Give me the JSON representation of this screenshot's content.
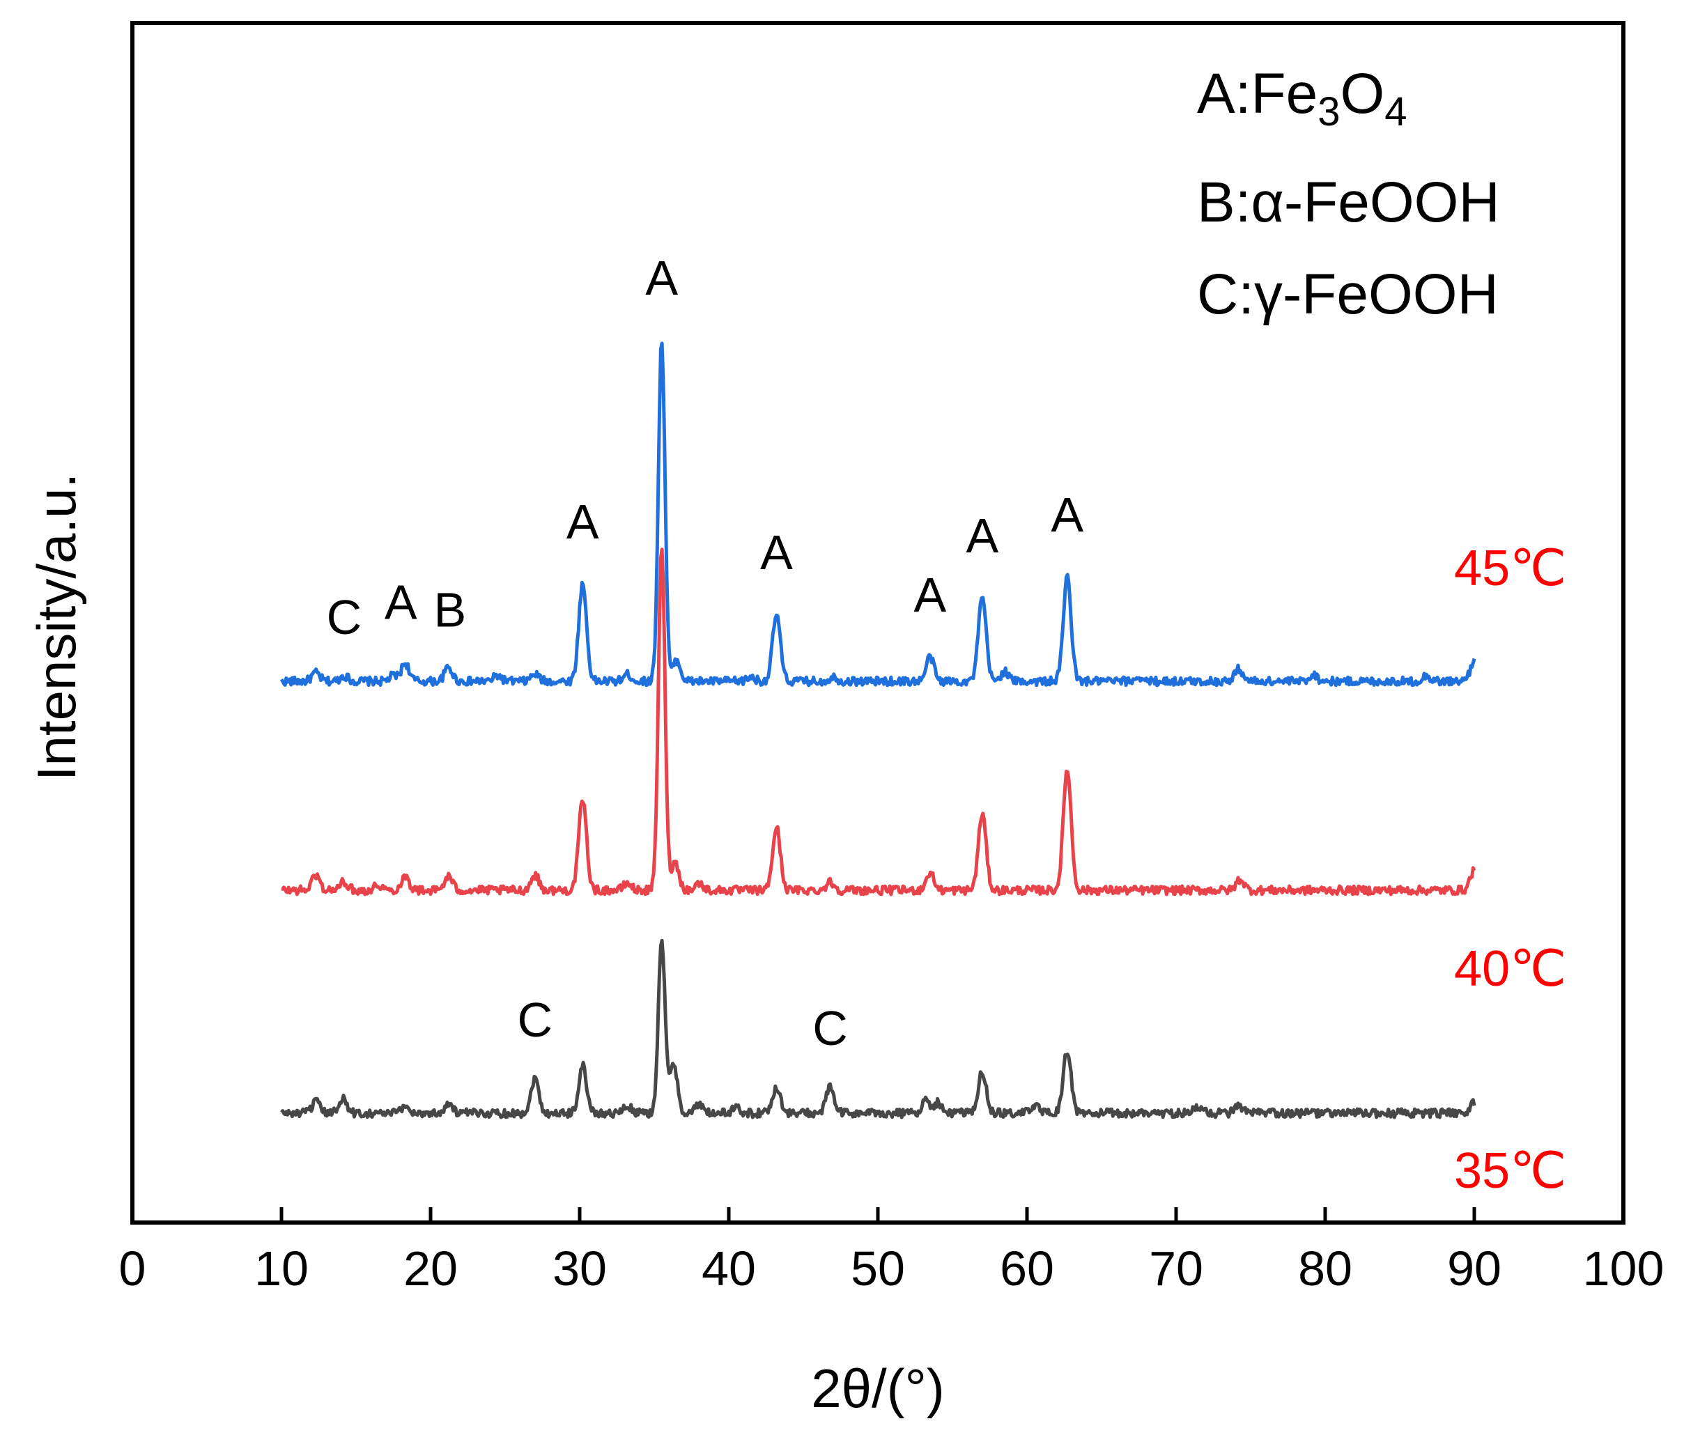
{
  "chart_data": {
    "type": "line",
    "title": "",
    "xlabel": "2θ/(°)",
    "ylabel": "Intensity/a.u.",
    "xlim": [
      0,
      100
    ],
    "xticks": [
      0,
      10,
      20,
      30,
      40,
      50,
      60,
      70,
      80,
      90,
      100
    ],
    "y_ticks_shown": false,
    "legend": {
      "placement": "top-right",
      "entries": [
        {
          "key": "A:",
          "base": "Fe",
          "sub1": "3",
          "mid": "O",
          "sub2": "4"
        },
        {
          "text": "B:α-FeOOH"
        },
        {
          "text": "C:γ-FeOOH"
        }
      ]
    },
    "series": [
      {
        "name": "45℃",
        "color": "#1f6fdc",
        "offset": 620,
        "baseline": 12,
        "label_color": "#ff0000",
        "peaks": [
          [
            12.3,
            12
          ],
          [
            14.2,
            8
          ],
          [
            17.5,
            8
          ],
          [
            18.3,
            26
          ],
          [
            21.2,
            20
          ],
          [
            24.5,
            8
          ],
          [
            27.0,
            10
          ],
          [
            30.2,
            140
          ],
          [
            33.2,
            10
          ],
          [
            35.5,
            490
          ],
          [
            36.5,
            30
          ],
          [
            41.5,
            6
          ],
          [
            43.2,
            96
          ],
          [
            47.0,
            6
          ],
          [
            53.5,
            35
          ],
          [
            57.0,
            120
          ],
          [
            58.5,
            14
          ],
          [
            62.7,
            150
          ],
          [
            67.5,
            6
          ],
          [
            74.2,
            18
          ],
          [
            79.2,
            10
          ],
          [
            86.8,
            8
          ],
          [
            90.0,
            30
          ]
        ],
        "annotations": [
          {
            "text": "C",
            "x": 14.2,
            "dy": 60
          },
          {
            "text": "A",
            "x": 18.0,
            "dy": 75
          },
          {
            "text": "B",
            "x": 21.3,
            "dy": 60
          },
          {
            "text": "A",
            "x": 30.2,
            "dy": 65
          },
          {
            "text": "A",
            "x": 35.5,
            "dy": 65
          },
          {
            "text": "A",
            "x": 43.2,
            "dy": 65
          },
          {
            "text": "A",
            "x": 53.5,
            "dy": 65
          },
          {
            "text": "A",
            "x": 57.0,
            "dy": 65
          },
          {
            "text": "A",
            "x": 62.7,
            "dy": 65
          }
        ]
      },
      {
        "name": "40℃",
        "color": "#e8434b",
        "offset": 320,
        "baseline": 12,
        "label_color": "#ff0000",
        "peaks": [
          [
            12.3,
            22
          ],
          [
            14.2,
            12
          ],
          [
            16.5,
            8
          ],
          [
            18.3,
            20
          ],
          [
            21.2,
            20
          ],
          [
            27.0,
            22
          ],
          [
            30.2,
            130
          ],
          [
            33.2,
            10
          ],
          [
            35.5,
            490
          ],
          [
            36.4,
            40
          ],
          [
            38.0,
            10
          ],
          [
            43.2,
            90
          ],
          [
            46.8,
            12
          ],
          [
            53.5,
            25
          ],
          [
            57.0,
            110
          ],
          [
            62.7,
            175
          ],
          [
            74.3,
            16
          ],
          [
            90.0,
            30
          ]
        ],
        "annotations": []
      },
      {
        "name": "35℃",
        "color": "#474747",
        "offset": 0,
        "baseline": 12,
        "label_color": "#ff0000",
        "peaks": [
          [
            12.3,
            16
          ],
          [
            14.1,
            22
          ],
          [
            18.3,
            10
          ],
          [
            21.2,
            14
          ],
          [
            27.0,
            50
          ],
          [
            30.2,
            68
          ],
          [
            33.2,
            10
          ],
          [
            35.5,
            250
          ],
          [
            36.3,
            70
          ],
          [
            38.0,
            12
          ],
          [
            40.5,
            8
          ],
          [
            43.2,
            38
          ],
          [
            46.8,
            38
          ],
          [
            53.2,
            18
          ],
          [
            54.0,
            15
          ],
          [
            57.0,
            60
          ],
          [
            60.5,
            12
          ],
          [
            62.7,
            90
          ],
          [
            71.5,
            10
          ],
          [
            74.2,
            10
          ],
          [
            90.0,
            16
          ]
        ],
        "annotations": [
          {
            "text": "C",
            "x": 27.0,
            "dy": 60
          },
          {
            "text": "C",
            "x": 46.8,
            "dy": 60
          }
        ]
      }
    ]
  }
}
